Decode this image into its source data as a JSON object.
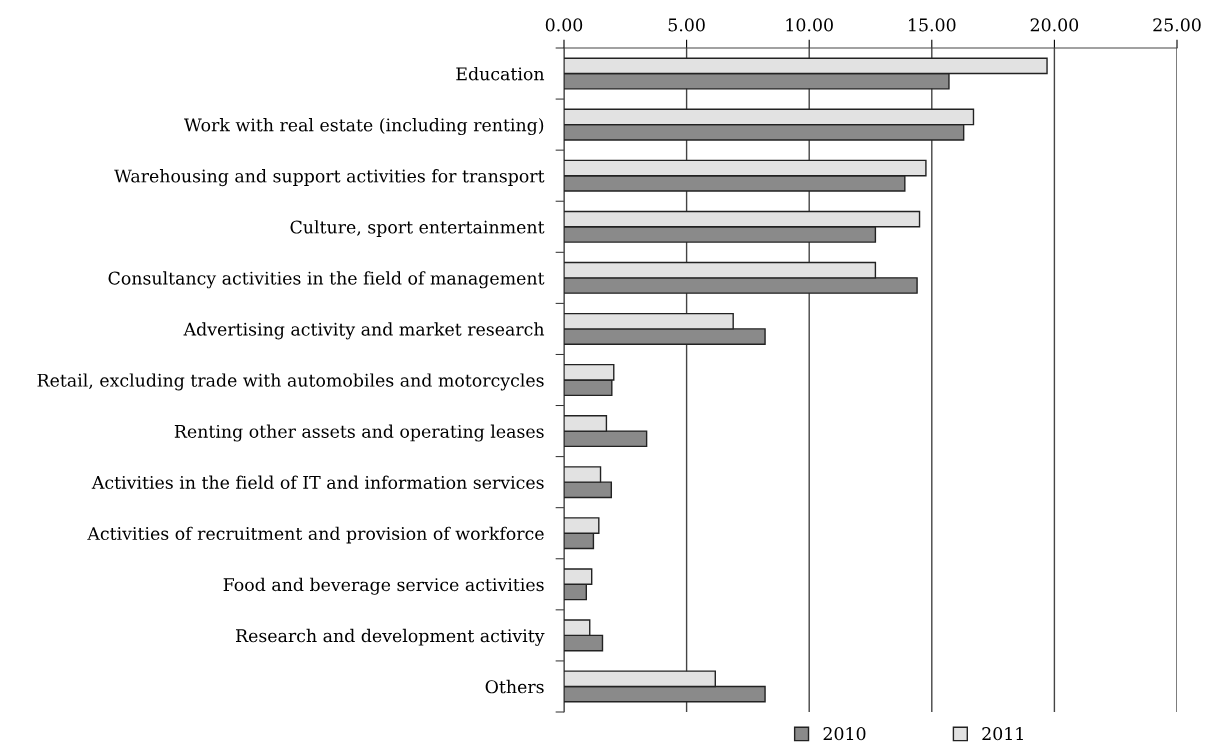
{
  "chart_data": {
    "type": "bar",
    "orientation": "horizontal",
    "categories": [
      "Education",
      "Work with real estate (including renting)",
      "Warehousing and support activities for transport",
      "Culture, sport entertainment",
      "Consultancy activities in the field of management",
      "Advertising activity and market research",
      "Retail, excluding trade with automobiles and motorcycles",
      "Renting other assets and operating leases",
      "Activities in the field of IT and information services",
      "Activities of recruitment and provision of workforce",
      "Food and beverage service activities",
      "Research and development activity",
      "Others"
    ],
    "series": [
      {
        "name": "2010",
        "color": "#8a8a8a",
        "values": [
          15.7,
          16.3,
          13.9,
          12.7,
          14.4,
          8.2,
          1.95,
          3.37,
          1.93,
          1.2,
          0.91,
          1.57,
          8.2
        ]
      },
      {
        "name": "2011",
        "color": "#e2e2e2",
        "values": [
          19.7,
          16.7,
          14.76,
          14.5,
          12.7,
          6.9,
          2.03,
          1.73,
          1.49,
          1.42,
          1.13,
          1.05,
          6.17
        ]
      }
    ],
    "xlim": [
      0,
      25
    ],
    "xticks": [
      {
        "value": 0,
        "label": "0.00"
      },
      {
        "value": 5,
        "label": "5.00"
      },
      {
        "value": 10,
        "label": "10.00"
      },
      {
        "value": 15,
        "label": "15.00"
      },
      {
        "value": 20,
        "label": "20.00"
      },
      {
        "value": 25,
        "label": "25.00"
      }
    ],
    "grid": "x",
    "legend": "bottom"
  }
}
